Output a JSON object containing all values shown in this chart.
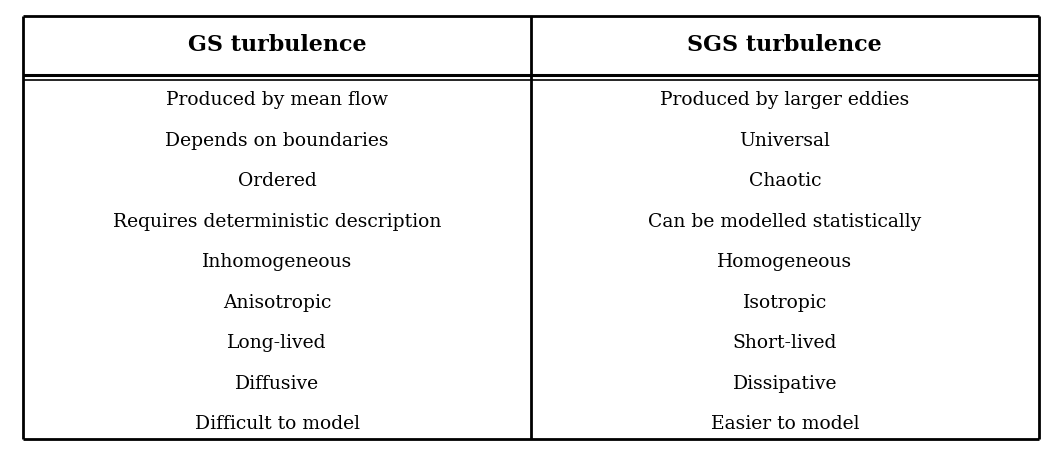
{
  "col1_header": "GS turbulence",
  "col2_header": "SGS turbulence",
  "col1_rows": [
    "Produced by mean flow",
    "Depends on boundaries",
    "Ordered",
    "Requires deterministic description",
    "Inhomogeneous",
    "Anisotropic",
    "Long-lived",
    "Diffusive",
    "Difficult to model"
  ],
  "col2_rows": [
    "Produced by larger eddies",
    "Universal",
    "Chaotic",
    "Can be modelled statistically",
    "Homogeneous",
    "Isotropic",
    "Short-lived",
    "Dissipative",
    "Easier to model"
  ],
  "bg_color": "#ffffff",
  "text_color": "#000000",
  "header_fontsize": 16,
  "body_fontsize": 13.5,
  "border_color": "#000000",
  "fig_width": 10.62,
  "fig_height": 4.53,
  "dpi": 100
}
